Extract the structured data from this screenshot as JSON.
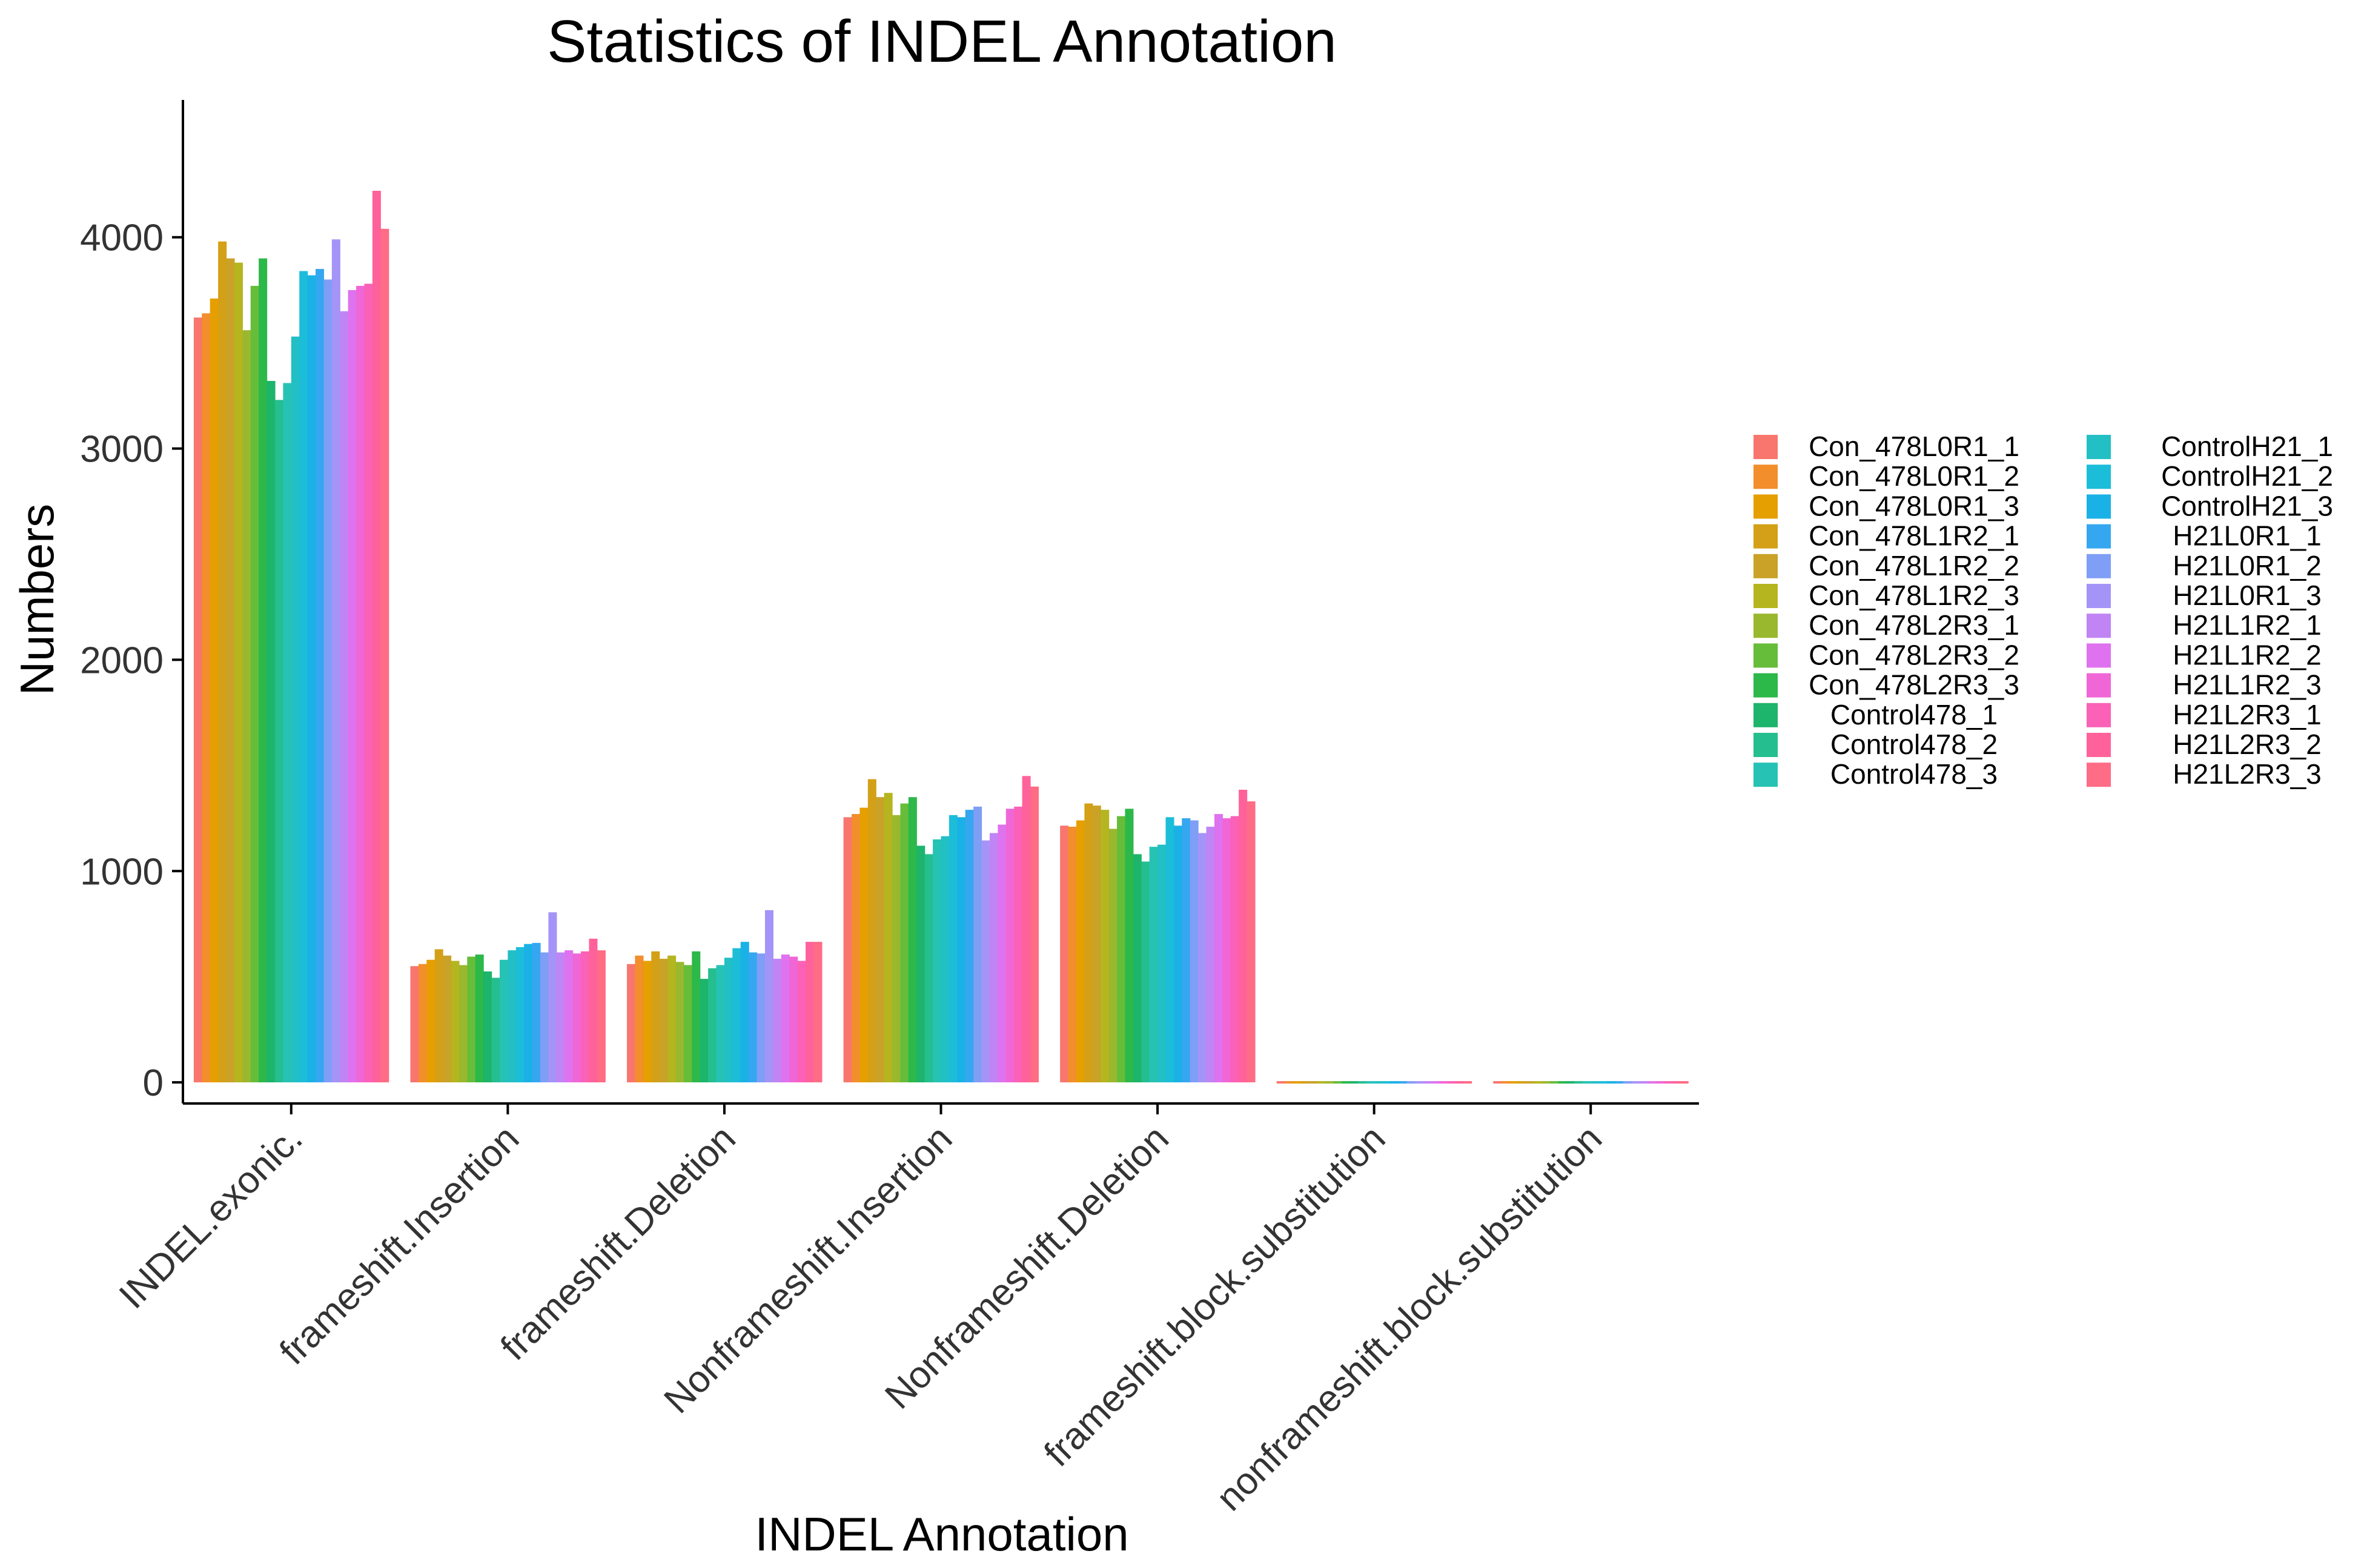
{
  "chart_data": {
    "type": "bar",
    "title": "Statistics of INDEL Annotation",
    "xlabel": "INDEL Annotation",
    "ylabel": "Numbers",
    "ylim": [
      -100,
      4650
    ],
    "yticks": [
      0,
      1000,
      2000,
      3000,
      4000
    ],
    "grid": false,
    "legend_position": "right",
    "categories": [
      "INDEL.exonic.",
      "frameshift.Insertion",
      "frameshift.Deletion",
      "Nonframeshift.Insertion",
      "Nonframeshift.Deletion",
      "frameshift.block.substitution",
      "nonframeshift.block.substitution"
    ],
    "series": [
      {
        "name": "Con_478L0R1_1",
        "color": "#F8766D",
        "values": [
          3620,
          550,
          560,
          1255,
          1215,
          0,
          0
        ]
      },
      {
        "name": "Con_478L0R1_2",
        "color": "#F28E2B",
        "values": [
          3640,
          560,
          600,
          1270,
          1210,
          0,
          0
        ]
      },
      {
        "name": "Con_478L0R1_3",
        "color": "#E69F00",
        "values": [
          3710,
          580,
          575,
          1300,
          1240,
          0,
          0
        ]
      },
      {
        "name": "Con_478L1R2_1",
        "color": "#D4A017",
        "values": [
          3980,
          630,
          620,
          1435,
          1320,
          0,
          0
        ]
      },
      {
        "name": "Con_478L1R2_2",
        "color": "#C9A227",
        "values": [
          3900,
          600,
          585,
          1350,
          1310,
          0,
          0
        ]
      },
      {
        "name": "Con_478L1R2_3",
        "color": "#B5B51F",
        "values": [
          3880,
          575,
          600,
          1370,
          1290,
          0,
          0
        ]
      },
      {
        "name": "Con_478L2R3_1",
        "color": "#9AB82E",
        "values": [
          3560,
          555,
          570,
          1265,
          1200,
          0,
          0
        ]
      },
      {
        "name": "Con_478L2R3_2",
        "color": "#66BD3A",
        "values": [
          3770,
          595,
          555,
          1320,
          1260,
          0,
          0
        ]
      },
      {
        "name": "Con_478L2R3_3",
        "color": "#2DB84A",
        "values": [
          3900,
          605,
          620,
          1350,
          1295,
          0,
          0
        ]
      },
      {
        "name": "Control478_1",
        "color": "#1DB46B",
        "values": [
          3320,
          525,
          490,
          1120,
          1080,
          0,
          0
        ]
      },
      {
        "name": "Control478_2",
        "color": "#25BE8F",
        "values": [
          3230,
          495,
          540,
          1080,
          1045,
          0,
          0
        ]
      },
      {
        "name": "Control478_3",
        "color": "#26C3B5",
        "values": [
          3310,
          580,
          555,
          1150,
          1115,
          0,
          0
        ]
      },
      {
        "name": "ControlH21_1",
        "color": "#22BFC4",
        "values": [
          3530,
          625,
          590,
          1165,
          1125,
          0,
          0
        ]
      },
      {
        "name": "ControlH21_2",
        "color": "#1CBDD9",
        "values": [
          3840,
          640,
          635,
          1265,
          1255,
          0,
          0
        ]
      },
      {
        "name": "ControlH21_3",
        "color": "#1AB1E6",
        "values": [
          3820,
          655,
          665,
          1255,
          1215,
          0,
          0
        ]
      },
      {
        "name": "H21L0R1_1",
        "color": "#35A7F0",
        "values": [
          3850,
          660,
          615,
          1290,
          1250,
          0,
          0
        ]
      },
      {
        "name": "H21L0R1_2",
        "color": "#7F9EF6",
        "values": [
          3800,
          615,
          610,
          1305,
          1240,
          0,
          0
        ]
      },
      {
        "name": "H21L0R1_3",
        "color": "#A594F7",
        "values": [
          3990,
          805,
          815,
          1145,
          1180,
          0,
          0
        ]
      },
      {
        "name": "H21L1R2_1",
        "color": "#C084F5",
        "values": [
          3650,
          615,
          585,
          1180,
          1210,
          0,
          0
        ]
      },
      {
        "name": "H21L1R2_2",
        "color": "#DF72EE",
        "values": [
          3750,
          625,
          605,
          1220,
          1270,
          0,
          0
        ]
      },
      {
        "name": "H21L1R2_3",
        "color": "#F066D6",
        "values": [
          3770,
          610,
          595,
          1295,
          1250,
          0,
          0
        ]
      },
      {
        "name": "H21L2R3_1",
        "color": "#FA61B7",
        "values": [
          3780,
          620,
          575,
          1305,
          1260,
          0,
          0
        ]
      },
      {
        "name": "H21L2R3_2",
        "color": "#FF629A",
        "values": [
          4220,
          680,
          665,
          1450,
          1385,
          0,
          0
        ]
      },
      {
        "name": "H21L2R3_3",
        "color": "#FF6C85",
        "values": [
          4040,
          625,
          665,
          1400,
          1330,
          0,
          0
        ]
      }
    ]
  }
}
